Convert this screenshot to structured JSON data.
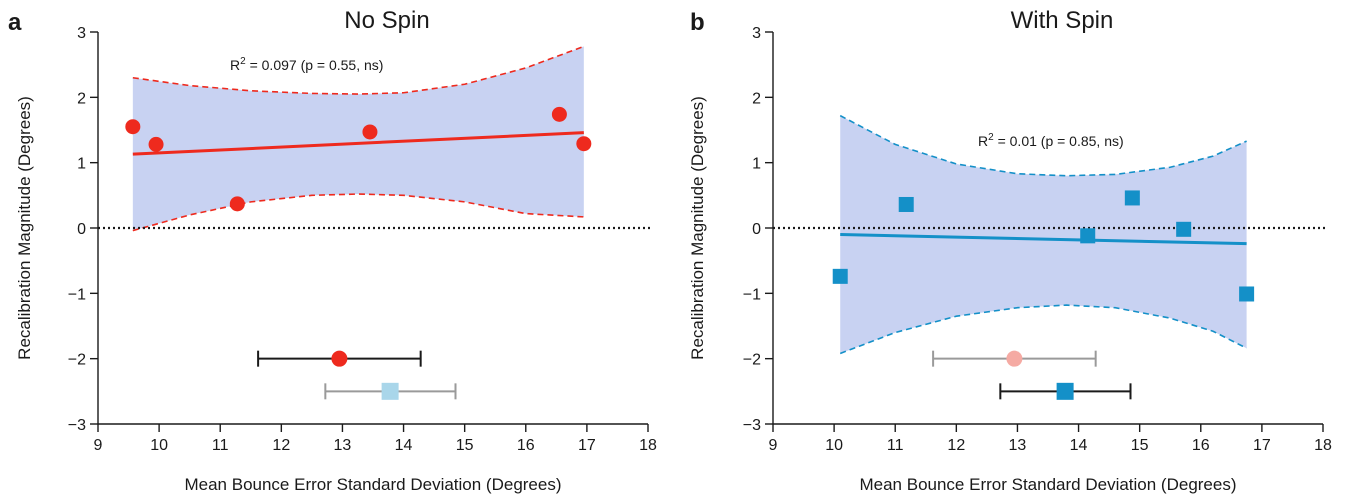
{
  "chart_data": [
    {
      "type": "scatter",
      "panel_letter": "a",
      "title": "No Spin",
      "xlabel": "Mean Bounce Error Standard Deviation (Degrees)",
      "ylabel": "Recalibration Magnitude (Degrees)",
      "xlim": [
        9,
        18
      ],
      "ylim": [
        -3,
        3
      ],
      "xticks": [
        9,
        10,
        11,
        12,
        13,
        14,
        15,
        16,
        17,
        18
      ],
      "yticks": [
        -3,
        -2,
        -1,
        0,
        1,
        2,
        3
      ],
      "annotation": {
        "prefix": "R",
        "sup": "2",
        "suffix": " = 0.097 (p = 0.55, ns)"
      },
      "marker": "circle",
      "colors": {
        "points": "#ee2a1e",
        "fit": "#ee2a1e",
        "band": "#c8d2f2",
        "band_edge": "#ee2a1e"
      },
      "points": [
        {
          "x": 9.57,
          "y": 1.55
        },
        {
          "x": 9.95,
          "y": 1.28
        },
        {
          "x": 11.28,
          "y": 0.37
        },
        {
          "x": 13.45,
          "y": 1.47
        },
        {
          "x": 16.55,
          "y": 1.74
        },
        {
          "x": 16.95,
          "y": 1.29
        }
      ],
      "fit": {
        "x0": 9.57,
        "y0": 1.13,
        "x1": 16.95,
        "y1": 1.46
      },
      "confidence_band": {
        "upper": [
          [
            9.57,
            2.3
          ],
          [
            10.5,
            2.18
          ],
          [
            11.5,
            2.1
          ],
          [
            12.5,
            2.06
          ],
          [
            13.26,
            2.05
          ],
          [
            14.0,
            2.07
          ],
          [
            15.0,
            2.2
          ],
          [
            16.0,
            2.45
          ],
          [
            16.95,
            2.78
          ]
        ],
        "lower": [
          [
            9.57,
            -0.04
          ],
          [
            10.5,
            0.2
          ],
          [
            11.5,
            0.4
          ],
          [
            12.5,
            0.5
          ],
          [
            13.26,
            0.52
          ],
          [
            14.0,
            0.5
          ],
          [
            15.0,
            0.4
          ],
          [
            16.0,
            0.22
          ],
          [
            16.95,
            0.17
          ]
        ]
      },
      "summaries": [
        {
          "x": 12.95,
          "y": -2.0,
          "xerr": [
            11.62,
            14.28
          ],
          "marker": "circle",
          "color": "#ee2a1e",
          "bar_color": "#1a1a1a"
        },
        {
          "x": 13.78,
          "y": -2.5,
          "xerr": [
            12.72,
            14.85
          ],
          "marker": "square",
          "color": "#a9d6ea",
          "bar_color": "#9a9a9a"
        }
      ]
    },
    {
      "type": "scatter",
      "panel_letter": "b",
      "title": "With Spin",
      "xlabel": "Mean Bounce Error Standard Deviation (Degrees)",
      "ylabel": "Recalibration Magnitude (Degrees)",
      "xlim": [
        9,
        18
      ],
      "ylim": [
        -3,
        3
      ],
      "xticks": [
        9,
        10,
        11,
        12,
        13,
        14,
        15,
        16,
        17,
        18
      ],
      "yticks": [
        -3,
        -2,
        -1,
        0,
        1,
        2,
        3
      ],
      "annotation": {
        "prefix": "R",
        "sup": "2",
        "suffix": " = 0.01 (p = 0.85, ns)"
      },
      "marker": "square",
      "colors": {
        "points": "#1490c8",
        "fit": "#1490c8",
        "band": "#c8d2f2",
        "band_edge": "#1490c8"
      },
      "points": [
        {
          "x": 10.1,
          "y": -0.74
        },
        {
          "x": 11.18,
          "y": 0.36
        },
        {
          "x": 14.15,
          "y": -0.12
        },
        {
          "x": 14.88,
          "y": 0.46
        },
        {
          "x": 15.72,
          "y": -0.02
        },
        {
          "x": 16.75,
          "y": -1.01
        }
      ],
      "fit": {
        "x0": 10.1,
        "y0": -0.1,
        "x1": 16.75,
        "y1": -0.24
      },
      "confidence_band": {
        "upper": [
          [
            10.1,
            1.72
          ],
          [
            11.0,
            1.28
          ],
          [
            12.0,
            0.98
          ],
          [
            13.0,
            0.83
          ],
          [
            13.8,
            0.8
          ],
          [
            14.6,
            0.82
          ],
          [
            15.5,
            0.93
          ],
          [
            16.2,
            1.1
          ],
          [
            16.75,
            1.33
          ]
        ],
        "lower": [
          [
            10.1,
            -1.92
          ],
          [
            11.0,
            -1.6
          ],
          [
            12.0,
            -1.35
          ],
          [
            13.0,
            -1.22
          ],
          [
            13.8,
            -1.18
          ],
          [
            14.6,
            -1.22
          ],
          [
            15.5,
            -1.38
          ],
          [
            16.2,
            -1.58
          ],
          [
            16.75,
            -1.84
          ]
        ]
      },
      "summaries": [
        {
          "x": 12.95,
          "y": -2.0,
          "xerr": [
            11.62,
            14.28
          ],
          "marker": "circle",
          "color": "#f5aaa3",
          "bar_color": "#9a9a9a"
        },
        {
          "x": 13.78,
          "y": -2.5,
          "xerr": [
            12.72,
            14.85
          ],
          "marker": "square",
          "color": "#1490c8",
          "bar_color": "#1a1a1a"
        }
      ]
    }
  ]
}
